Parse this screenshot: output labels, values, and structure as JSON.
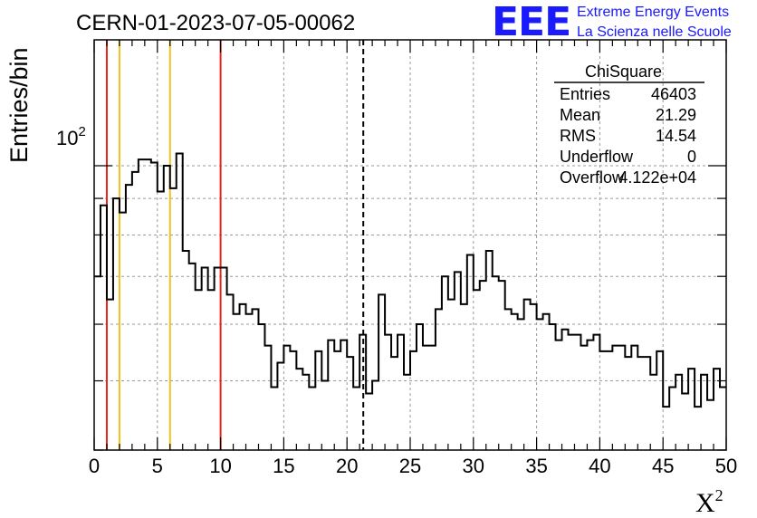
{
  "chart_data": {
    "type": "bar",
    "style": "step-histogram",
    "title": "CERN-01-2023-07-05-00062",
    "xlabel": "X",
    "xlabel_superscript": "2",
    "ylabel": "Entries/bin",
    "xlim": [
      0,
      50
    ],
    "ylim": [
      40,
      150
    ],
    "y_scale": "log",
    "grid": true,
    "x_ticks": [
      0,
      5,
      10,
      15,
      20,
      25,
      30,
      35,
      40,
      45,
      50
    ],
    "y_tick_label": "10",
    "y_tick_label_exp": "2",
    "bin_width": 0.5,
    "bin_start": 0,
    "values": [
      70,
      88,
      65,
      90,
      86,
      94,
      98,
      102,
      102,
      101,
      92,
      100,
      93,
      104,
      76,
      73,
      67,
      72,
      67,
      72,
      72,
      66,
      62,
      64,
      62,
      63,
      60,
      56,
      49,
      53,
      56,
      55,
      52,
      51,
      49,
      55,
      50,
      57,
      55,
      57,
      54,
      49,
      58,
      48,
      50,
      66,
      58,
      54,
      58,
      51,
      55,
      60,
      56,
      56,
      63,
      70,
      65,
      71,
      64,
      75,
      67,
      69,
      76,
      70,
      69,
      63,
      62,
      61,
      65,
      64,
      61,
      62,
      60,
      57,
      59,
      58,
      58,
      56,
      57,
      58,
      55,
      55,
      56,
      56,
      54,
      56,
      54,
      54,
      51,
      55,
      46,
      49,
      51,
      48,
      52,
      46,
      51,
      47,
      52,
      49
    ],
    "reference_lines": [
      {
        "x": 1,
        "color": "#e8251b"
      },
      {
        "x": 2,
        "color": "#f2c01e"
      },
      {
        "x": 6,
        "color": "#f2c01e"
      },
      {
        "x": 10,
        "color": "#e8251b"
      }
    ],
    "mean_line": {
      "x": 21.29,
      "style": "dashed",
      "color": "#000000"
    },
    "stats_box": {
      "title": "ChiSquare",
      "rows": [
        {
          "label": "Entries",
          "value": "46403"
        },
        {
          "label": "Mean",
          "value": "21.29"
        },
        {
          "label": "RMS",
          "value": "14.54"
        },
        {
          "label": "Underflow",
          "value": "0"
        },
        {
          "label": "Overflow",
          "value": "4.122e+04"
        }
      ]
    }
  },
  "logo": {
    "mark": "EEE",
    "line1": "Extreme Energy Events",
    "line2": "La Scienza nelle Scuole",
    "color": "#1a1aff"
  }
}
